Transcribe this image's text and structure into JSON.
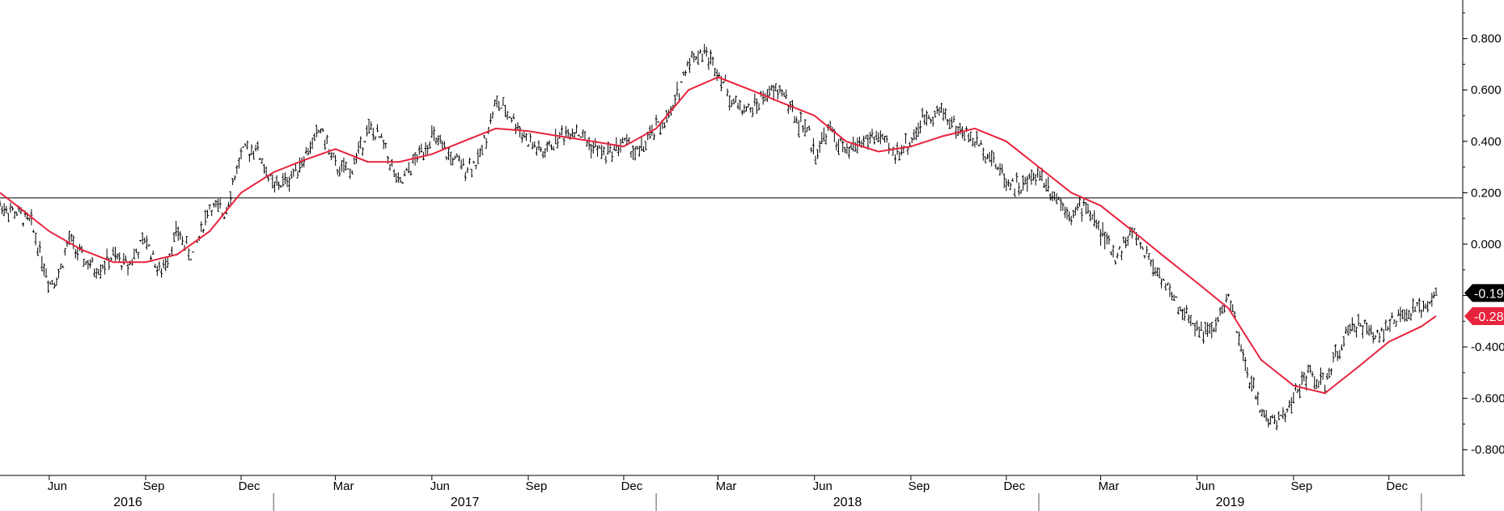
{
  "chart_data": {
    "type": "line",
    "title": "",
    "xlabel": "",
    "ylabel": "",
    "ylim": [
      -0.9,
      0.95
    ],
    "y_ticks": [
      "0.800",
      "0.600",
      "0.400",
      "0.200",
      "0.000",
      "-0.200",
      "-0.400",
      "-0.600",
      "-0.800"
    ],
    "y_tick_values": [
      0.8,
      0.6,
      0.4,
      0.2,
      0.0,
      -0.2,
      -0.4,
      -0.6,
      -0.8
    ],
    "month_labels": [
      {
        "label": "Jun",
        "date": "2016-06-01"
      },
      {
        "label": "Sep",
        "date": "2016-09-01"
      },
      {
        "label": "Dec",
        "date": "2016-12-01"
      },
      {
        "label": "Mar",
        "date": "2017-03-01"
      },
      {
        "label": "Jun",
        "date": "2017-06-01"
      },
      {
        "label": "Sep",
        "date": "2017-09-01"
      },
      {
        "label": "Dec",
        "date": "2017-12-01"
      },
      {
        "label": "Mar",
        "date": "2018-03-01"
      },
      {
        "label": "Jun",
        "date": "2018-06-01"
      },
      {
        "label": "Sep",
        "date": "2018-09-01"
      },
      {
        "label": "Dec",
        "date": "2018-12-01"
      },
      {
        "label": "Mar",
        "date": "2019-03-01"
      },
      {
        "label": "Jun",
        "date": "2019-06-01"
      },
      {
        "label": "Sep",
        "date": "2019-09-01"
      },
      {
        "label": "Dec",
        "date": "2019-12-01"
      }
    ],
    "year_labels": [
      "2016",
      "2017",
      "2018",
      "2019"
    ],
    "x_start": "2016-04-15",
    "x_end": "2020-01-25",
    "grid": false,
    "reference_line": 0.18,
    "series": [
      {
        "type": "ohlc",
        "color": "#000000",
        "last_value": "-0.19",
        "dates": [
          "2016-04-15",
          "2016-05-01",
          "2016-05-15",
          "2016-06-01",
          "2016-06-10",
          "2016-06-20",
          "2016-07-01",
          "2016-07-15",
          "2016-08-01",
          "2016-08-15",
          "2016-09-01",
          "2016-09-15",
          "2016-10-01",
          "2016-10-15",
          "2016-11-01",
          "2016-11-15",
          "2016-12-01",
          "2016-12-15",
          "2017-01-01",
          "2017-01-15",
          "2017-02-01",
          "2017-02-15",
          "2017-03-01",
          "2017-03-15",
          "2017-04-01",
          "2017-04-15",
          "2017-05-01",
          "2017-05-15",
          "2017-06-01",
          "2017-06-15",
          "2017-07-01",
          "2017-07-15",
          "2017-08-01",
          "2017-08-15",
          "2017-09-01",
          "2017-09-15",
          "2017-10-01",
          "2017-10-15",
          "2017-11-01",
          "2017-11-15",
          "2017-12-01",
          "2017-12-15",
          "2018-01-01",
          "2018-01-15",
          "2018-02-01",
          "2018-02-15",
          "2018-03-01",
          "2018-03-15",
          "2018-04-01",
          "2018-04-15",
          "2018-05-01",
          "2018-05-15",
          "2018-05-25",
          "2018-06-01",
          "2018-06-15",
          "2018-07-01",
          "2018-07-15",
          "2018-08-01",
          "2018-08-15",
          "2018-09-01",
          "2018-09-15",
          "2018-10-01",
          "2018-10-15",
          "2018-11-01",
          "2018-11-15",
          "2018-12-01",
          "2018-12-15",
          "2019-01-01",
          "2019-01-15",
          "2019-02-01",
          "2019-02-15",
          "2019-03-01",
          "2019-03-15",
          "2019-04-01",
          "2019-04-15",
          "2019-05-01",
          "2019-05-15",
          "2019-06-01",
          "2019-06-15",
          "2019-07-01",
          "2019-07-15",
          "2019-08-01",
          "2019-08-15",
          "2019-09-01",
          "2019-09-15",
          "2019-10-01",
          "2019-10-15",
          "2019-11-01",
          "2019-11-15",
          "2019-12-01",
          "2019-12-15",
          "2020-01-01",
          "2020-01-15"
        ],
        "values": [
          0.15,
          0.12,
          0.08,
          -0.15,
          -0.12,
          0.02,
          -0.05,
          -0.1,
          -0.05,
          -0.08,
          0.02,
          -0.12,
          0.05,
          -0.05,
          0.15,
          0.12,
          0.35,
          0.38,
          0.22,
          0.25,
          0.35,
          0.45,
          0.3,
          0.28,
          0.45,
          0.4,
          0.22,
          0.32,
          0.42,
          0.35,
          0.3,
          0.32,
          0.55,
          0.5,
          0.4,
          0.35,
          0.42,
          0.45,
          0.38,
          0.35,
          0.4,
          0.35,
          0.45,
          0.5,
          0.72,
          0.75,
          0.68,
          0.55,
          0.52,
          0.58,
          0.6,
          0.48,
          0.45,
          0.35,
          0.45,
          0.35,
          0.4,
          0.42,
          0.35,
          0.4,
          0.5,
          0.52,
          0.45,
          0.4,
          0.35,
          0.25,
          0.22,
          0.28,
          0.2,
          0.12,
          0.15,
          0.05,
          -0.05,
          0.05,
          -0.05,
          -0.15,
          -0.25,
          -0.32,
          -0.35,
          -0.2,
          -0.45,
          -0.65,
          -0.7,
          -0.6,
          -0.5,
          -0.55,
          -0.4,
          -0.3,
          -0.35,
          -0.32,
          -0.28,
          -0.25,
          -0.19
        ]
      },
      {
        "type": "line",
        "color": "#e8233d",
        "last_value": "-0.28",
        "dates": [
          "2016-04-15",
          "2016-05-01",
          "2016-06-01",
          "2016-07-01",
          "2016-08-01",
          "2016-09-01",
          "2016-10-01",
          "2016-11-01",
          "2016-12-01",
          "2017-01-01",
          "2017-02-01",
          "2017-03-01",
          "2017-04-01",
          "2017-05-01",
          "2017-06-01",
          "2017-07-01",
          "2017-08-01",
          "2017-09-01",
          "2017-10-01",
          "2017-11-01",
          "2017-12-01",
          "2018-01-01",
          "2018-02-01",
          "2018-03-01",
          "2018-04-01",
          "2018-05-01",
          "2018-06-01",
          "2018-07-01",
          "2018-08-01",
          "2018-09-01",
          "2018-10-01",
          "2018-11-01",
          "2018-12-01",
          "2019-01-01",
          "2019-02-01",
          "2019-03-01",
          "2019-04-01",
          "2019-05-01",
          "2019-06-01",
          "2019-07-01",
          "2019-08-01",
          "2019-09-01",
          "2019-10-01",
          "2019-11-01",
          "2019-12-01",
          "2020-01-01",
          "2020-01-15"
        ],
        "values": [
          0.2,
          0.15,
          0.05,
          -0.02,
          -0.07,
          -0.07,
          -0.04,
          0.05,
          0.2,
          0.28,
          0.33,
          0.37,
          0.32,
          0.32,
          0.35,
          0.4,
          0.45,
          0.44,
          0.42,
          0.4,
          0.38,
          0.45,
          0.6,
          0.65,
          0.6,
          0.55,
          0.5,
          0.4,
          0.36,
          0.38,
          0.42,
          0.45,
          0.4,
          0.3,
          0.2,
          0.15,
          0.05,
          -0.05,
          -0.15,
          -0.25,
          -0.45,
          -0.55,
          -0.58,
          -0.48,
          -0.38,
          -0.32,
          -0.28
        ]
      }
    ]
  }
}
